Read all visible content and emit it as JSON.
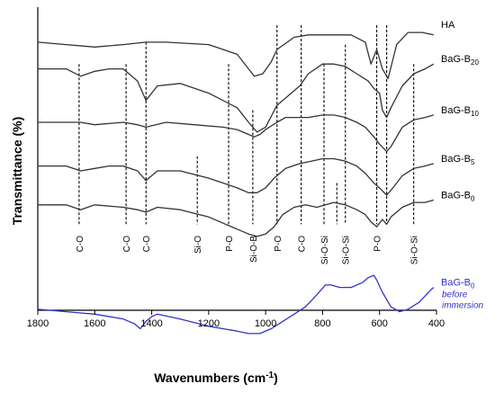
{
  "chart_data": {
    "type": "line",
    "title": "",
    "xlabel": "Wavenumbers (cm⁻¹)",
    "xlabel_prefix": "Wavenumbers (cm",
    "xlabel_sup": "-1",
    "xlabel_suffix": ")",
    "ylabel": "Transmittance (%)",
    "xlim": [
      1800,
      400
    ],
    "x_reversed": true,
    "x_ticks": [
      1800,
      1600,
      1400,
      1200,
      1000,
      800,
      600,
      400
    ],
    "x_tick_labels": [
      "1800",
      "1600",
      "1400",
      "1200",
      "1000",
      "800",
      "600",
      "400"
    ],
    "y_ticks_shown": false,
    "ylim": [
      0,
      100
    ],
    "grid": false,
    "series": [
      {
        "name": "HA",
        "label": {
          "text": "HA",
          "sub": "",
          "note": ""
        },
        "color": "#333333",
        "x": [
          1800,
          1700,
          1600,
          1500,
          1420,
          1350,
          1200,
          1100,
          1060,
          1040,
          1010,
          980,
          960,
          900,
          850,
          800,
          750,
          700,
          650,
          630,
          610,
          590,
          570,
          540,
          500,
          450,
          410
        ],
        "y": [
          93,
          92,
          91,
          92,
          93,
          93,
          92,
          88,
          82,
          79,
          80,
          85,
          90,
          95,
          96,
          96,
          96,
          96,
          93,
          84,
          90,
          82,
          78,
          92,
          97,
          97,
          96
        ]
      },
      {
        "name": "BaG-B20",
        "label": {
          "text": "BaG-B",
          "sub": "20",
          "note": ""
        },
        "color": "#333333",
        "x": [
          1800,
          1700,
          1650,
          1600,
          1550,
          1500,
          1450,
          1420,
          1380,
          1300,
          1200,
          1100,
          1060,
          1030,
          1000,
          960,
          930,
          880,
          850,
          800,
          760,
          720,
          680,
          640,
          620,
          600,
          590,
          575,
          560,
          520,
          480,
          440,
          410
        ],
        "y": [
          82,
          82,
          79,
          81,
          82,
          82,
          77,
          69,
          75,
          76,
          72,
          66,
          60,
          56,
          58,
          67,
          70,
          75,
          80,
          84,
          84,
          83,
          80,
          77,
          74,
          72,
          65,
          62,
          66,
          75,
          80,
          82,
          84
        ]
      },
      {
        "name": "BaG-B10",
        "label": {
          "text": "BaG-B",
          "sub": "10",
          "note": ""
        },
        "color": "#333333",
        "x": [
          1800,
          1700,
          1650,
          1600,
          1500,
          1450,
          1420,
          1350,
          1250,
          1150,
          1100,
          1060,
          1040,
          1020,
          1000,
          960,
          930,
          900,
          850,
          800,
          760,
          720,
          680,
          650,
          620,
          600,
          575,
          560,
          520,
          480,
          440,
          410
        ],
        "y": [
          60,
          60,
          60,
          59,
          60,
          59,
          58,
          60,
          59,
          58,
          57,
          55,
          54,
          55,
          57,
          60,
          62,
          62,
          62,
          63,
          63,
          62,
          60,
          58,
          54,
          51,
          48,
          50,
          58,
          61,
          62,
          63
        ]
      },
      {
        "name": "BaG-B5",
        "label": {
          "text": "BaG-B",
          "sub": "5",
          "note": ""
        },
        "color": "#333333",
        "x": [
          1800,
          1700,
          1650,
          1600,
          1550,
          1500,
          1450,
          1420,
          1380,
          1300,
          1200,
          1100,
          1060,
          1030,
          1000,
          970,
          930,
          880,
          840,
          800,
          760,
          720,
          680,
          650,
          620,
          600,
          575,
          560,
          520,
          480,
          440,
          410
        ],
        "y": [
          42,
          42,
          40,
          41,
          42,
          42,
          40,
          36,
          40,
          40,
          37,
          33,
          31,
          31,
          33,
          37,
          41,
          43,
          44,
          45,
          45,
          44,
          42,
          39,
          35,
          33,
          30,
          32,
          38,
          41,
          42,
          43
        ]
      },
      {
        "name": "BaG-B0",
        "label": {
          "text": "BaG-B",
          "sub": "0",
          "note": ""
        },
        "color": "#333333",
        "x": [
          1800,
          1700,
          1650,
          1600,
          1500,
          1450,
          1420,
          1380,
          1300,
          1200,
          1100,
          1060,
          1030,
          1000,
          970,
          940,
          900,
          860,
          820,
          790,
          760,
          720,
          680,
          650,
          630,
          610,
          590,
          575,
          560,
          520,
          480,
          440,
          410
        ],
        "y": [
          26,
          26,
          24,
          26,
          25,
          24,
          23,
          25,
          24,
          21,
          16,
          14,
          13,
          14,
          17,
          22,
          25,
          26,
          25,
          26,
          27,
          26,
          24,
          22,
          19,
          17,
          20,
          18,
          21,
          25,
          27,
          27,
          28
        ]
      },
      {
        "name": "BaG-B0 before immersion",
        "label": {
          "text": "BaG-B",
          "sub": "0",
          "note": "before immersion"
        },
        "color": "#3333cc",
        "x": [
          1800,
          1700,
          1600,
          1500,
          1460,
          1440,
          1420,
          1400,
          1380,
          1300,
          1200,
          1100,
          1060,
          1020,
          980,
          940,
          900,
          860,
          820,
          790,
          770,
          740,
          700,
          660,
          640,
          620,
          610,
          590,
          560,
          530,
          500,
          460,
          420,
          410
        ],
        "y": [
          -17,
          -18,
          -19,
          -21,
          -23,
          -25,
          -22,
          -20,
          -19,
          -21,
          -24,
          -26,
          -27,
          -27,
          -25,
          -22,
          -19,
          -16,
          -11,
          -7,
          -7,
          -8,
          -8,
          -6,
          -4,
          -3,
          -5,
          -10,
          -16,
          -18,
          -17,
          -14,
          -9,
          -8
        ]
      }
    ],
    "vertical_lines": [
      {
        "x": 1655,
        "y_top": 84,
        "y_bottom": 18
      },
      {
        "x": 1490,
        "y_top": 84,
        "y_bottom": 18
      },
      {
        "x": 1420,
        "y_top": 93,
        "y_bottom": 18
      },
      {
        "x": 1240,
        "y_top": 46,
        "y_bottom": 18
      },
      {
        "x": 1130,
        "y_top": 84,
        "y_bottom": 18
      },
      {
        "x": 1045,
        "y_top": 65,
        "y_bottom": 18
      },
      {
        "x": 960,
        "y_top": 100,
        "y_bottom": 18
      },
      {
        "x": 875,
        "y_top": 100,
        "y_bottom": 18
      },
      {
        "x": 795,
        "y_top": 84,
        "y_bottom": 18
      },
      {
        "x": 750,
        "y_top": 35,
        "y_bottom": 18
      },
      {
        "x": 720,
        "y_top": 92,
        "y_bottom": 18
      },
      {
        "x": 610,
        "y_top": 100,
        "y_bottom": 18
      },
      {
        "x": 575,
        "y_top": 100,
        "y_bottom": 18
      },
      {
        "x": 480,
        "y_top": 84,
        "y_bottom": 18
      }
    ],
    "annotations": [
      {
        "text": "C-O",
        "x": 1655
      },
      {
        "text": "C-O",
        "x": 1490
      },
      {
        "text": "C-O",
        "x": 1420
      },
      {
        "text": "Si-O",
        "x": 1240
      },
      {
        "text": "P-O",
        "x": 1130
      },
      {
        "text": "Si-O-B",
        "x": 1045
      },
      {
        "text": "P-O",
        "x": 960
      },
      {
        "text": "C-O",
        "x": 875
      },
      {
        "text": "Si-O-Si",
        "x": 795
      },
      {
        "text": "Si-O-Si",
        "x": 720
      },
      {
        "text": "P-O",
        "x": 610
      },
      {
        "text": "Si-O-Si",
        "x": 480
      }
    ]
  }
}
